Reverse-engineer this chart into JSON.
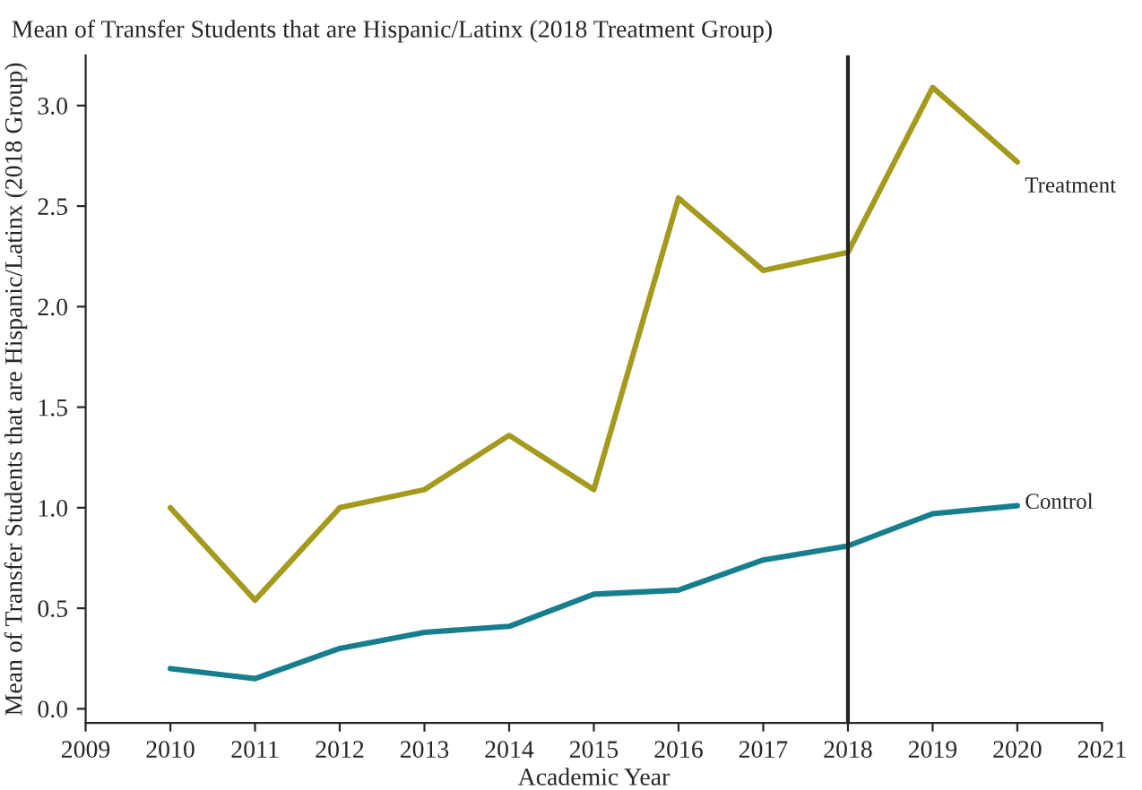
{
  "chart_data": {
    "type": "line",
    "title": "Mean of Transfer Students that are Hispanic/Latinx (2018 Treatment Group)",
    "xlabel": "Academic Year",
    "ylabel": "Mean of Transfer Students that are Hispanic/Latinx (2018 Group)",
    "x": [
      2010,
      2011,
      2012,
      2013,
      2014,
      2015,
      2016,
      2017,
      2018,
      2019,
      2020
    ],
    "series": [
      {
        "name": "Treatment",
        "color": "#a39a1e",
        "values": [
          1.0,
          0.54,
          1.0,
          1.09,
          1.36,
          1.09,
          2.54,
          2.18,
          2.27,
          3.09,
          2.72
        ]
      },
      {
        "name": "Control",
        "color": "#177e8e",
        "values": [
          0.2,
          0.15,
          0.3,
          0.38,
          0.41,
          0.57,
          0.59,
          0.74,
          0.81,
          0.97,
          1.01
        ]
      }
    ],
    "xlim": [
      2009,
      2021
    ],
    "xticks": [
      2009,
      2010,
      2011,
      2012,
      2013,
      2014,
      2015,
      2016,
      2017,
      2018,
      2019,
      2020,
      2021
    ],
    "ylim": [
      -0.07,
      3.25
    ],
    "yticks": [
      {
        "value": 0,
        "label": "0.0"
      },
      0.5,
      {
        "value": 1,
        "label": "1.0"
      },
      1.5,
      {
        "value": 2,
        "label": "2.0"
      },
      2.5,
      {
        "value": 3,
        "label": "3.0"
      }
    ],
    "ref_lines": [
      {
        "axis": "x",
        "value": 2018,
        "color": "#222222"
      }
    ],
    "grid": false,
    "legend": false,
    "line_style": "solid",
    "marker": "none"
  }
}
